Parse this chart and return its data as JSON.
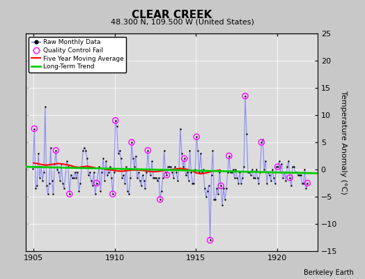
{
  "title": "CLEAR CREEK",
  "subtitle": "48.300 N, 109.500 W (United States)",
  "ylabel": "Temperature Anomaly (°C)",
  "credit": "Berkeley Earth",
  "xlim": [
    1904.5,
    1922.5
  ],
  "ylim": [
    -15,
    25
  ],
  "yticks": [
    -15,
    -10,
    -5,
    0,
    5,
    10,
    15,
    20,
    25
  ],
  "xticks": [
    1905,
    1910,
    1915,
    1920
  ],
  "plot_bg": "#dcdcdc",
  "fig_bg": "#c8c8c8",
  "raw_data": [
    [
      1904.958,
      0.1
    ],
    [
      1905.042,
      7.5
    ],
    [
      1905.125,
      -3.5
    ],
    [
      1905.208,
      -3.0
    ],
    [
      1905.292,
      3.0
    ],
    [
      1905.375,
      -1.5
    ],
    [
      1905.458,
      0.5
    ],
    [
      1905.542,
      -2.0
    ],
    [
      1905.625,
      -0.5
    ],
    [
      1905.708,
      11.5
    ],
    [
      1905.792,
      -3.0
    ],
    [
      1905.875,
      -4.5
    ],
    [
      1905.958,
      -2.5
    ],
    [
      1906.042,
      4.0
    ],
    [
      1906.125,
      -2.0
    ],
    [
      1906.208,
      -4.5
    ],
    [
      1906.292,
      1.0
    ],
    [
      1906.375,
      3.5
    ],
    [
      1906.458,
      0.0
    ],
    [
      1906.542,
      -0.5
    ],
    [
      1906.625,
      -2.0
    ],
    [
      1906.708,
      1.0
    ],
    [
      1906.792,
      -2.5
    ],
    [
      1906.875,
      -3.5
    ],
    [
      1907.042,
      1.5
    ],
    [
      1907.125,
      0.5
    ],
    [
      1907.208,
      -4.5
    ],
    [
      1907.292,
      -1.0
    ],
    [
      1907.375,
      -1.5
    ],
    [
      1907.458,
      -1.5
    ],
    [
      1907.542,
      -0.5
    ],
    [
      1907.625,
      -1.5
    ],
    [
      1907.708,
      -0.5
    ],
    [
      1907.792,
      -4.0
    ],
    [
      1907.875,
      -2.5
    ],
    [
      1908.042,
      3.5
    ],
    [
      1908.125,
      4.0
    ],
    [
      1908.208,
      3.5
    ],
    [
      1908.292,
      2.0
    ],
    [
      1908.375,
      -1.0
    ],
    [
      1908.458,
      -0.5
    ],
    [
      1908.542,
      -2.0
    ],
    [
      1908.625,
      -3.0
    ],
    [
      1908.708,
      -0.5
    ],
    [
      1908.792,
      -4.5
    ],
    [
      1908.875,
      -2.5
    ],
    [
      1909.042,
      0.5
    ],
    [
      1909.125,
      -4.0
    ],
    [
      1909.208,
      -0.5
    ],
    [
      1909.292,
      2.0
    ],
    [
      1909.375,
      -2.0
    ],
    [
      1909.458,
      1.5
    ],
    [
      1909.542,
      -1.0
    ],
    [
      1909.625,
      -0.5
    ],
    [
      1909.708,
      0.5
    ],
    [
      1909.792,
      -1.5
    ],
    [
      1909.875,
      -4.5
    ],
    [
      1909.958,
      -0.5
    ],
    [
      1910.042,
      9.0
    ],
    [
      1910.125,
      8.0
    ],
    [
      1910.208,
      3.0
    ],
    [
      1910.292,
      3.5
    ],
    [
      1910.375,
      2.0
    ],
    [
      1910.458,
      -1.5
    ],
    [
      1910.542,
      -1.0
    ],
    [
      1910.625,
      -2.5
    ],
    [
      1910.708,
      0.5
    ],
    [
      1910.792,
      -4.0
    ],
    [
      1910.875,
      -4.5
    ],
    [
      1910.958,
      -1.5
    ],
    [
      1911.042,
      5.0
    ],
    [
      1911.125,
      2.0
    ],
    [
      1911.208,
      0.5
    ],
    [
      1911.292,
      2.5
    ],
    [
      1911.375,
      -1.5
    ],
    [
      1911.458,
      -0.5
    ],
    [
      1911.542,
      -2.0
    ],
    [
      1911.625,
      -3.0
    ],
    [
      1911.708,
      -1.0
    ],
    [
      1911.792,
      -2.0
    ],
    [
      1911.875,
      -3.5
    ],
    [
      1911.958,
      -0.5
    ],
    [
      1912.042,
      3.5
    ],
    [
      1912.125,
      0.0
    ],
    [
      1912.208,
      -1.0
    ],
    [
      1912.292,
      1.5
    ],
    [
      1912.375,
      -1.5
    ],
    [
      1912.458,
      -1.5
    ],
    [
      1912.542,
      -1.5
    ],
    [
      1912.625,
      -2.0
    ],
    [
      1912.708,
      -1.5
    ],
    [
      1912.792,
      -5.5
    ],
    [
      1912.875,
      -4.0
    ],
    [
      1912.958,
      -1.5
    ],
    [
      1913.042,
      3.5
    ],
    [
      1913.125,
      -0.5
    ],
    [
      1913.208,
      -1.0
    ],
    [
      1913.292,
      0.5
    ],
    [
      1913.375,
      0.5
    ],
    [
      1913.458,
      0.5
    ],
    [
      1913.542,
      -0.5
    ],
    [
      1913.625,
      -1.5
    ],
    [
      1913.708,
      0.5
    ],
    [
      1913.792,
      -0.5
    ],
    [
      1913.875,
      -2.0
    ],
    [
      1913.958,
      0.0
    ],
    [
      1914.042,
      7.5
    ],
    [
      1914.125,
      3.0
    ],
    [
      1914.208,
      0.5
    ],
    [
      1914.292,
      2.0
    ],
    [
      1914.375,
      -1.0
    ],
    [
      1914.458,
      -0.5
    ],
    [
      1914.542,
      -2.0
    ],
    [
      1914.625,
      3.5
    ],
    [
      1914.708,
      -0.5
    ],
    [
      1914.792,
      -2.5
    ],
    [
      1914.875,
      -2.5
    ],
    [
      1914.958,
      0.0
    ],
    [
      1915.042,
      6.0
    ],
    [
      1915.125,
      3.5
    ],
    [
      1915.208,
      -0.5
    ],
    [
      1915.292,
      3.0
    ],
    [
      1915.375,
      -0.5
    ],
    [
      1915.458,
      0.0
    ],
    [
      1915.542,
      -3.5
    ],
    [
      1915.625,
      -5.0
    ],
    [
      1915.708,
      -4.0
    ],
    [
      1915.792,
      -3.0
    ],
    [
      1915.875,
      -13.0
    ],
    [
      1915.958,
      -1.0
    ],
    [
      1916.042,
      3.5
    ],
    [
      1916.125,
      -5.5
    ],
    [
      1916.208,
      -5.5
    ],
    [
      1916.292,
      -3.5
    ],
    [
      1916.375,
      -4.5
    ],
    [
      1916.458,
      -0.5
    ],
    [
      1916.542,
      -3.0
    ],
    [
      1916.625,
      -6.5
    ],
    [
      1916.708,
      -3.5
    ],
    [
      1916.792,
      -5.5
    ],
    [
      1916.875,
      -3.5
    ],
    [
      1916.958,
      -0.5
    ],
    [
      1917.042,
      2.5
    ],
    [
      1917.125,
      -0.5
    ],
    [
      1917.208,
      -0.5
    ],
    [
      1917.292,
      0.0
    ],
    [
      1917.375,
      -1.5
    ],
    [
      1917.458,
      0.0
    ],
    [
      1917.542,
      -1.5
    ],
    [
      1917.625,
      -2.5
    ],
    [
      1917.708,
      -0.5
    ],
    [
      1917.792,
      -2.5
    ],
    [
      1917.875,
      -1.5
    ],
    [
      1917.958,
      0.5
    ],
    [
      1918.042,
      13.5
    ],
    [
      1918.125,
      6.5
    ],
    [
      1918.208,
      -0.5
    ],
    [
      1918.292,
      -0.5
    ],
    [
      1918.375,
      -1.0
    ],
    [
      1918.458,
      0.0
    ],
    [
      1918.542,
      -1.5
    ],
    [
      1918.625,
      -1.5
    ],
    [
      1918.708,
      0.0
    ],
    [
      1918.792,
      -1.5
    ],
    [
      1918.875,
      -2.5
    ],
    [
      1918.958,
      -0.5
    ],
    [
      1919.042,
      5.0
    ],
    [
      1919.125,
      5.5
    ],
    [
      1919.208,
      0.0
    ],
    [
      1919.292,
      1.5
    ],
    [
      1919.375,
      -2.5
    ],
    [
      1919.458,
      -0.5
    ],
    [
      1919.542,
      -1.0
    ],
    [
      1919.625,
      -2.0
    ],
    [
      1919.708,
      0.0
    ],
    [
      1919.792,
      -1.5
    ],
    [
      1919.875,
      -2.5
    ],
    [
      1919.958,
      0.5
    ],
    [
      1920.042,
      0.5
    ],
    [
      1920.125,
      1.5
    ],
    [
      1920.208,
      -0.5
    ],
    [
      1920.292,
      1.0
    ],
    [
      1920.375,
      -1.5
    ],
    [
      1920.458,
      -0.5
    ],
    [
      1920.542,
      -2.0
    ],
    [
      1920.625,
      0.5
    ],
    [
      1920.708,
      1.5
    ],
    [
      1920.792,
      -1.5
    ],
    [
      1920.875,
      -3.0
    ],
    [
      1920.958,
      0.5
    ],
    [
      1921.042,
      0.5
    ],
    [
      1921.125,
      -0.5
    ],
    [
      1921.208,
      -0.5
    ],
    [
      1921.292,
      -1.0
    ],
    [
      1921.375,
      -1.0
    ],
    [
      1921.458,
      -1.0
    ],
    [
      1921.542,
      -2.5
    ],
    [
      1921.625,
      -2.5
    ],
    [
      1921.708,
      0.0
    ],
    [
      1921.792,
      -3.5
    ],
    [
      1921.875,
      -2.5
    ]
  ],
  "qc_fail_points": [
    [
      1905.042,
      7.5
    ],
    [
      1906.375,
      3.5
    ],
    [
      1907.208,
      -4.5
    ],
    [
      1908.875,
      -2.5
    ],
    [
      1909.875,
      -4.5
    ],
    [
      1910.042,
      9.0
    ],
    [
      1911.042,
      5.0
    ],
    [
      1912.042,
      3.5
    ],
    [
      1912.792,
      -5.5
    ],
    [
      1913.208,
      -1.0
    ],
    [
      1914.292,
      2.0
    ],
    [
      1915.042,
      6.0
    ],
    [
      1915.875,
      -13.0
    ],
    [
      1916.542,
      -3.0
    ],
    [
      1917.042,
      2.5
    ],
    [
      1918.042,
      13.5
    ],
    [
      1919.042,
      5.0
    ],
    [
      1920.042,
      0.5
    ],
    [
      1920.792,
      -1.5
    ],
    [
      1921.875,
      -2.5
    ]
  ],
  "moving_avg": [
    [
      1905.0,
      1.2
    ],
    [
      1905.2,
      1.1
    ],
    [
      1905.5,
      0.9
    ],
    [
      1905.8,
      0.8
    ],
    [
      1906.0,
      0.9
    ],
    [
      1906.3,
      1.0
    ],
    [
      1906.5,
      1.1
    ],
    [
      1906.8,
      1.0
    ],
    [
      1907.0,
      0.9
    ],
    [
      1907.3,
      0.7
    ],
    [
      1907.5,
      0.5
    ],
    [
      1907.8,
      0.4
    ],
    [
      1908.0,
      0.5
    ],
    [
      1908.3,
      0.6
    ],
    [
      1908.5,
      0.5
    ],
    [
      1908.8,
      0.3
    ],
    [
      1909.0,
      0.2
    ],
    [
      1909.3,
      0.1
    ],
    [
      1909.5,
      0.0
    ],
    [
      1909.8,
      -0.1
    ],
    [
      1910.0,
      -0.2
    ],
    [
      1910.3,
      -0.3
    ],
    [
      1910.5,
      -0.3
    ],
    [
      1910.8,
      -0.2
    ],
    [
      1911.0,
      -0.1
    ],
    [
      1911.3,
      -0.1
    ],
    [
      1911.5,
      -0.1
    ],
    [
      1911.8,
      -0.2
    ],
    [
      1912.0,
      -0.3
    ],
    [
      1912.3,
      -0.4
    ],
    [
      1912.5,
      -0.4
    ],
    [
      1912.8,
      -0.3
    ],
    [
      1913.0,
      -0.2
    ],
    [
      1913.3,
      -0.1
    ],
    [
      1913.5,
      0.0
    ],
    [
      1913.8,
      0.1
    ],
    [
      1914.0,
      0.2
    ],
    [
      1914.3,
      0.1
    ],
    [
      1914.5,
      0.0
    ],
    [
      1914.8,
      -0.3
    ],
    [
      1915.0,
      -0.6
    ],
    [
      1915.3,
      -0.8
    ],
    [
      1915.5,
      -0.7
    ],
    [
      1915.8,
      -0.5
    ],
    [
      1916.0,
      -0.3
    ],
    [
      1916.3,
      -0.2
    ],
    [
      1916.5,
      -0.1
    ]
  ],
  "trend_line": [
    [
      1904.5,
      0.5
    ],
    [
      1922.5,
      -0.7
    ]
  ],
  "raw_color": "#6666ff",
  "raw_line_alpha": 0.7,
  "qc_color": "#ff00ff",
  "moving_avg_color": "#ff0000",
  "trend_color": "#00cc00",
  "grid_color": "#ffffff",
  "title_fontsize": 11,
  "subtitle_fontsize": 8,
  "tick_fontsize": 8,
  "ylabel_fontsize": 8
}
